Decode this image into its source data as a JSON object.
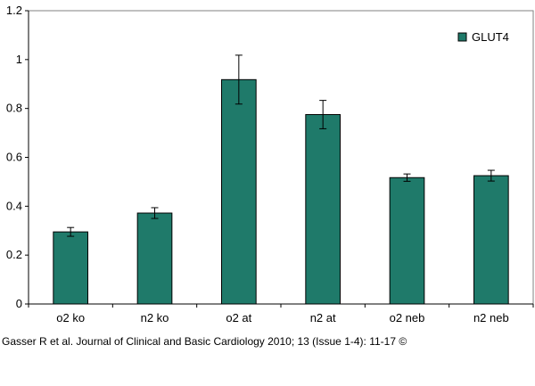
{
  "chart_data": {
    "type": "bar",
    "categories": [
      "o2 ko",
      "n2 ko",
      "o2 at",
      "n2 at",
      "o2 neb",
      "n2 neb"
    ],
    "series": [
      {
        "name": "GLUT4",
        "values": [
          0.295,
          0.372,
          0.918,
          0.775,
          0.517,
          0.525
        ],
        "error": [
          0.018,
          0.022,
          0.1,
          0.058,
          0.015,
          0.022
        ],
        "color": "#1f7a6a"
      }
    ],
    "ylim": [
      0,
      1.2
    ],
    "yticks": [
      0,
      0.2,
      0.4,
      0.6,
      0.8,
      1,
      1.2
    ],
    "grid": false,
    "legend": "top-right"
  },
  "citation": "Gasser R et al. Journal of Clinical and Basic Cardiology 2010; 13 (Issue 1-4): 11-17 ©"
}
